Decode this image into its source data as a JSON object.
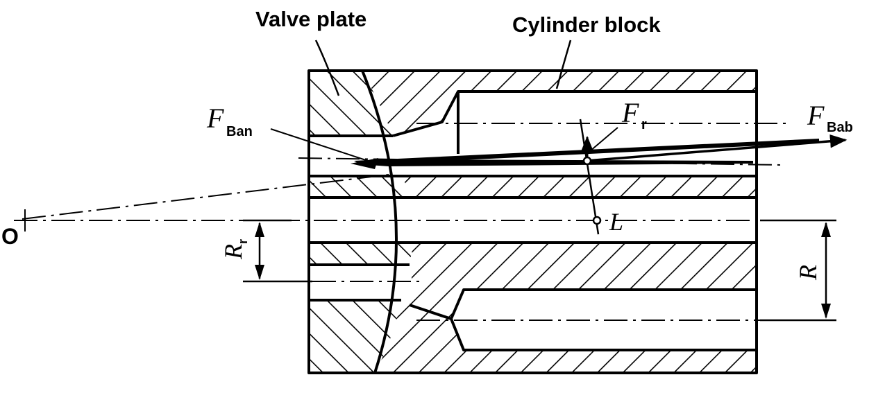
{
  "labels": {
    "valve_plate": "Valve plate",
    "cylinder_block": "Cylinder block",
    "point_o": "O",
    "point_l": "L",
    "force_ban_main": "F",
    "force_ban_sub": "Ban",
    "force_bab_main": "F",
    "force_bab_sub": "Bab",
    "force_r_main": "F",
    "force_r_sub": "r",
    "radius_r_main": "R",
    "radius_r_sub": "r",
    "radius_main": "R"
  },
  "colors": {
    "ink": "#000000",
    "paper": "#ffffff"
  }
}
